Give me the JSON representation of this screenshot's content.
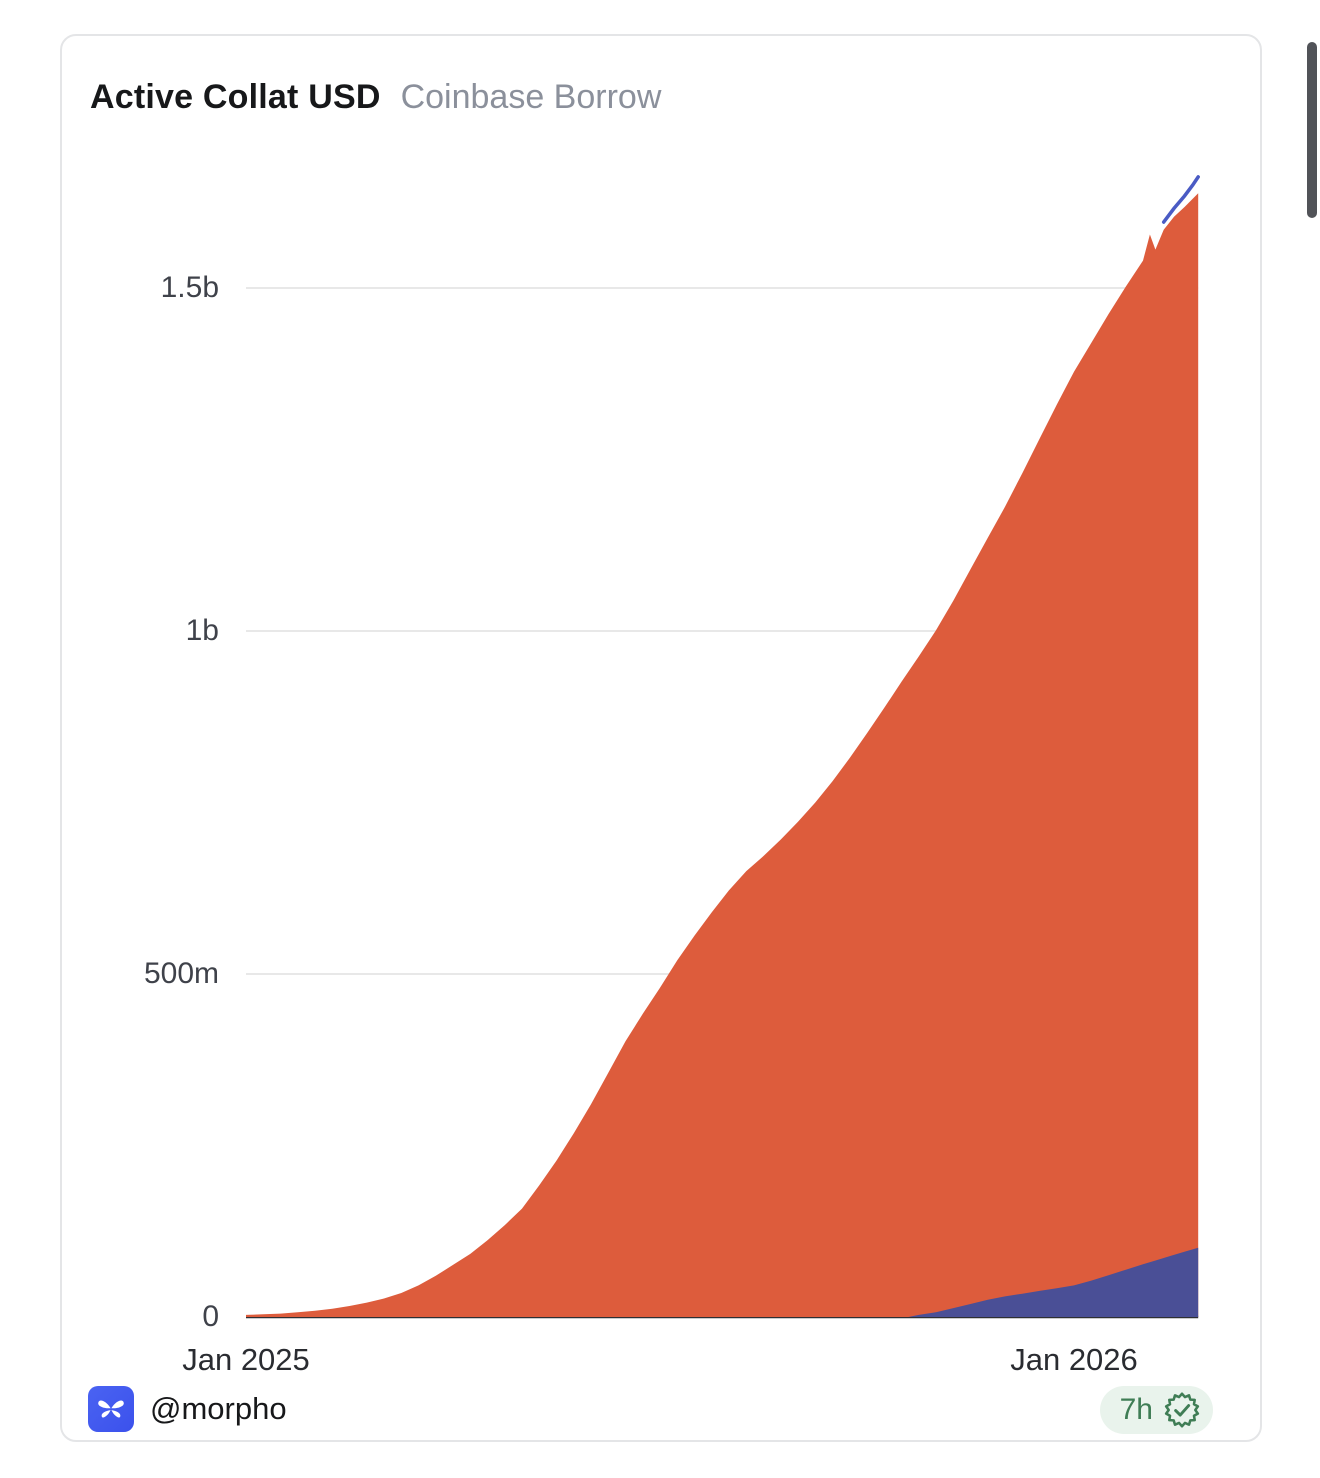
{
  "header": {
    "title": "Active Collat USD",
    "subtitle": "Coinbase Borrow"
  },
  "chart_data": {
    "type": "area",
    "title": "Active Collat USD",
    "subtitle": "Coinbase Borrow",
    "legend": "none",
    "grid": "horizontal",
    "x_axis": {
      "x_max_month": 13.8,
      "ticks": [
        {
          "label": "Jan 2025",
          "month": 0
        },
        {
          "label": "Jan 2026",
          "month": 12
        }
      ]
    },
    "y_axis": {
      "unit": "USD",
      "max_plotted_value_musd": 1660,
      "ticks": [
        {
          "label": "1.5b",
          "value": 1500
        },
        {
          "label": "1b",
          "value": 1000
        },
        {
          "label": "500m",
          "value": 500
        },
        {
          "label": "0",
          "value": 0
        }
      ]
    },
    "series": [
      {
        "name": "total-active-collateral",
        "color": "#DD5C3C",
        "render": "area",
        "points_m_musd": [
          [
            0,
            3
          ],
          [
            0.25,
            4
          ],
          [
            0.5,
            5
          ],
          [
            0.75,
            7
          ],
          [
            1,
            9
          ],
          [
            1.25,
            12
          ],
          [
            1.5,
            16
          ],
          [
            1.75,
            21
          ],
          [
            2,
            27
          ],
          [
            2.25,
            35
          ],
          [
            2.5,
            46
          ],
          [
            2.75,
            60
          ],
          [
            3,
            76
          ],
          [
            3.25,
            92
          ],
          [
            3.5,
            112
          ],
          [
            3.75,
            134
          ],
          [
            4,
            158
          ],
          [
            4.25,
            192
          ],
          [
            4.5,
            228
          ],
          [
            4.75,
            268
          ],
          [
            5,
            310
          ],
          [
            5.25,
            356
          ],
          [
            5.5,
            402
          ],
          [
            5.75,
            442
          ],
          [
            6,
            480
          ],
          [
            6.25,
            520
          ],
          [
            6.5,
            556
          ],
          [
            6.75,
            590
          ],
          [
            7,
            622
          ],
          [
            7.25,
            650
          ],
          [
            7.5,
            672
          ],
          [
            7.75,
            696
          ],
          [
            8,
            722
          ],
          [
            8.25,
            750
          ],
          [
            8.5,
            781
          ],
          [
            8.75,
            815
          ],
          [
            9,
            851
          ],
          [
            9.25,
            888
          ],
          [
            9.5,
            926
          ],
          [
            9.75,
            963
          ],
          [
            10,
            1001
          ],
          [
            10.25,
            1044
          ],
          [
            10.5,
            1090
          ],
          [
            10.75,
            1136
          ],
          [
            11,
            1181
          ],
          [
            11.25,
            1230
          ],
          [
            11.5,
            1280
          ],
          [
            11.75,
            1330
          ],
          [
            12,
            1378
          ],
          [
            12.25,
            1420
          ],
          [
            12.5,
            1462
          ],
          [
            12.75,
            1502
          ],
          [
            13,
            1540
          ],
          [
            13.1,
            1578
          ],
          [
            13.18,
            1556
          ],
          [
            13.3,
            1585
          ],
          [
            13.45,
            1604
          ],
          [
            13.6,
            1618
          ],
          [
            13.8,
            1638
          ]
        ]
      },
      {
        "name": "secondary-market",
        "color": "#4A4F96",
        "render": "area-overlay-bottom",
        "points_m_musd": [
          [
            9.6,
            0
          ],
          [
            9.75,
            3
          ],
          [
            10,
            7
          ],
          [
            10.25,
            13
          ],
          [
            10.5,
            19
          ],
          [
            10.75,
            25
          ],
          [
            11,
            30
          ],
          [
            11.25,
            34
          ],
          [
            11.5,
            38
          ],
          [
            11.75,
            42
          ],
          [
            12,
            46
          ],
          [
            12.25,
            53
          ],
          [
            12.5,
            61
          ],
          [
            12.75,
            69
          ],
          [
            13,
            77
          ],
          [
            13.2,
            83
          ],
          [
            13.4,
            89
          ],
          [
            13.6,
            95
          ],
          [
            13.8,
            101
          ]
        ]
      },
      {
        "name": "peak-highlight",
        "color": "#4A5BC4",
        "render": "line",
        "points_m_musd": [
          [
            13.3,
            1596
          ],
          [
            13.45,
            1616
          ],
          [
            13.6,
            1634
          ],
          [
            13.72,
            1650
          ],
          [
            13.8,
            1662
          ]
        ]
      }
    ]
  },
  "footer": {
    "handle": "@morpho",
    "time_badge": {
      "text": "7h"
    }
  },
  "icons": {
    "logo": "morpho-butterfly-icon",
    "badge": "verified-seal-icon"
  },
  "colors": {
    "orange": "#DD5C3C",
    "navy": "#4A4F96",
    "grid": "#E8E8E8",
    "axis": "#2E2F33",
    "badge_bg": "#E9F3EC",
    "badge_text": "#3F7D55",
    "subtitle": "#8B909B"
  }
}
